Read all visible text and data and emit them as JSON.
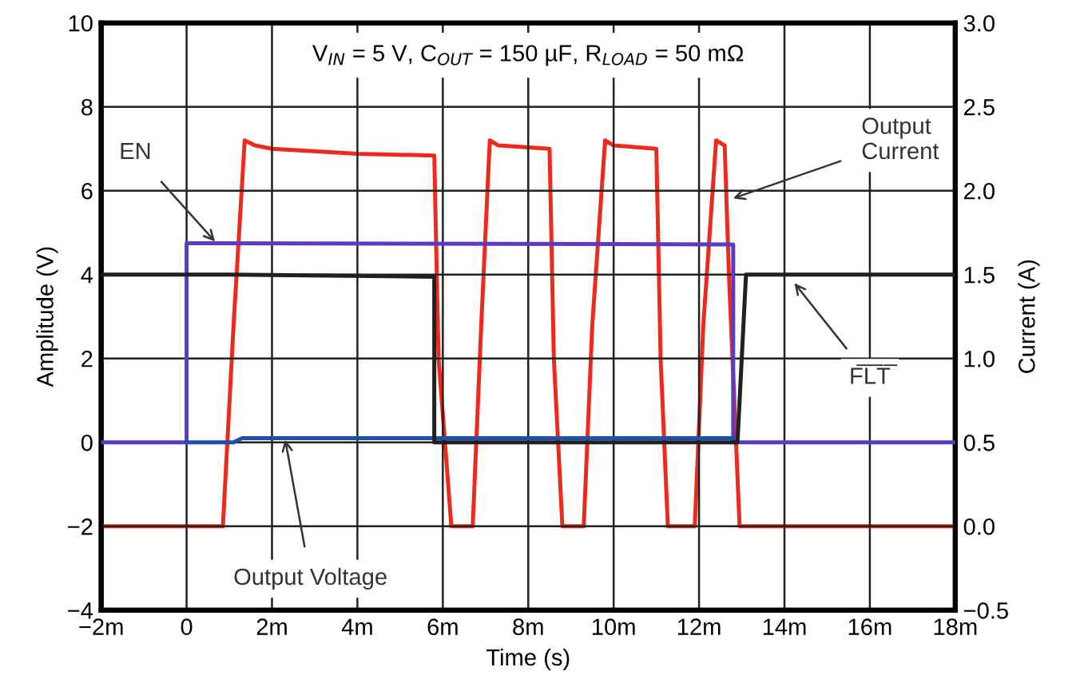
{
  "chart_data": {
    "type": "line",
    "title": "V$_{IN}$ = 5 V, C$_{OUT}$ = 150 µF, R$_{LOAD}$ = 50 mΩ",
    "xlabel": "Time (s)",
    "ylabel": "Amplitude (V)",
    "y2label": "Current (A)",
    "xlim": [
      -2,
      18
    ],
    "xticks": [
      {
        "value": -2,
        "label": "−2m"
      },
      0,
      {
        "value": 2,
        "label": "2m"
      },
      {
        "value": 4,
        "label": "4m"
      },
      {
        "value": 6,
        "label": "6m"
      },
      {
        "value": 8,
        "label": "8m"
      },
      {
        "value": 10,
        "label": "10m"
      },
      {
        "value": 12,
        "label": "12m"
      },
      {
        "value": 14,
        "label": "14m"
      },
      {
        "value": 16,
        "label": "16m"
      },
      {
        "value": 18,
        "label": "18m"
      }
    ],
    "ylim": [
      -4,
      10
    ],
    "yticks": [
      {
        "value": -4,
        "label": "−4"
      },
      {
        "value": -2,
        "label": "−2"
      },
      0,
      2,
      4,
      6,
      8,
      10
    ],
    "y2lim": [
      -0.5,
      3.0
    ],
    "y2ticks": [
      {
        "value": -0.5,
        "label": "−0.5"
      },
      {
        "value": 0.0,
        "label": "0.0"
      },
      {
        "value": 0.5,
        "label": "0.5"
      },
      {
        "value": 1.0,
        "label": "1.0"
      },
      {
        "value": 1.5,
        "label": "1.5"
      },
      {
        "value": 2.0,
        "label": "2.0"
      },
      {
        "value": 2.5,
        "label": "2.5"
      },
      {
        "value": 3.0,
        "label": "3.0"
      }
    ],
    "annotations": [
      {
        "text": "EN",
        "x": 0.7,
        "y": 4.75
      },
      {
        "text": "Output Voltage",
        "x": 2.3,
        "y": 0.12
      },
      {
        "text": "F̅L̅T̅",
        "x": 14.2,
        "y": 3.84
      },
      {
        "text": "Output\nCurrent",
        "x": 12.75,
        "y": 5.8
      }
    ],
    "grid": true,
    "legend": false,
    "marker": "none",
    "line_style": "solid",
    "series": [
      {
        "color": "#5a3cc0",
        "x": [
          -2,
          0,
          0,
          12.8,
          12.8,
          18
        ],
        "values": [
          0,
          0,
          4.75,
          4.72,
          0,
          0
        ]
      },
      {
        "color": "#1f50a8",
        "x": [
          0,
          1.1,
          1.3,
          12.8
        ],
        "values": [
          0,
          0,
          0.1,
          0.1
        ]
      },
      {
        "color": "#202020",
        "x": [
          -2,
          1,
          5.8,
          5.8,
          12.9,
          13.1,
          18
        ],
        "values": [
          4,
          4,
          3.95,
          0,
          0,
          4,
          4
        ]
      },
      {
        "color": "#ee2a1e",
        "axis": "y2",
        "x": [
          -2,
          0.85,
          1.1,
          1.36,
          1.6,
          2,
          4,
          5.8,
          5.9,
          6.2,
          6.7,
          6.9,
          7.1,
          7.3,
          8.5,
          8.6,
          8.8,
          9.3,
          9.5,
          9.8,
          10.0,
          11.0,
          11.1,
          11.27,
          11.9,
          12.1,
          12.4,
          12.6,
          12.7,
          12.95,
          18
        ],
        "values": [
          0,
          0,
          1.2,
          2.3,
          2.27,
          2.25,
          2.22,
          2.21,
          1.0,
          0,
          0,
          1.2,
          2.3,
          2.27,
          2.25,
          1.0,
          0,
          0,
          1.2,
          2.3,
          2.27,
          2.25,
          1.0,
          0,
          0,
          1.2,
          2.3,
          2.27,
          1.5,
          0,
          0
        ]
      }
    ]
  }
}
